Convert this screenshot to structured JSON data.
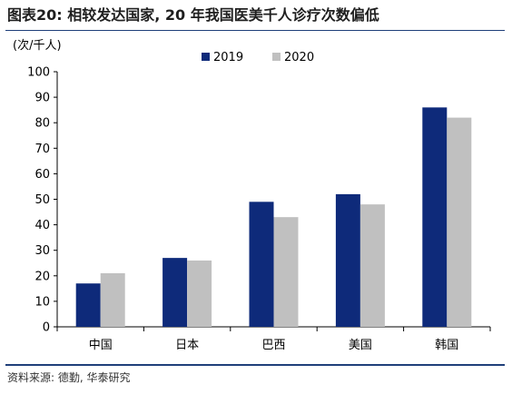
{
  "header": {
    "title": "图表20:  相较发达国家, 20 年我国医美千人诊疗次数偏低"
  },
  "footer": {
    "source": "资料来源: 德勤, 华泰研究"
  },
  "chart_data": {
    "type": "bar",
    "unit_label": "(次/千人)",
    "categories": [
      "中国",
      "日本",
      "巴西",
      "美国",
      "韩国"
    ],
    "series": [
      {
        "name": "2019",
        "color": "#0e2a7a",
        "values": [
          17,
          27,
          49,
          52,
          86
        ]
      },
      {
        "name": "2020",
        "color": "#c0c0c0",
        "values": [
          21,
          26,
          43,
          48,
          82
        ]
      }
    ],
    "ylim": [
      0,
      100
    ],
    "yticks": [
      0,
      10,
      20,
      30,
      40,
      50,
      60,
      70,
      80,
      90,
      100
    ],
    "grid": false,
    "legend_position": "top-center"
  }
}
